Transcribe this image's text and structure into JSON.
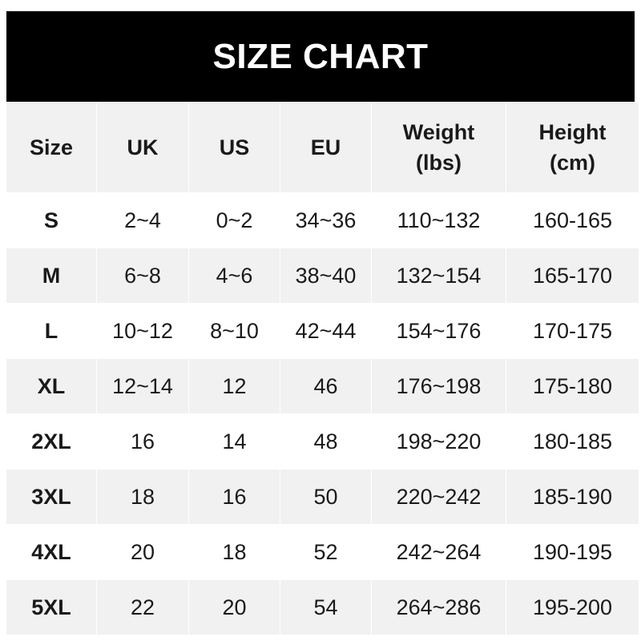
{
  "title": "SIZE CHART",
  "headers": [
    "Size",
    "UK",
    "US",
    "EU",
    "Weight\n(lbs)",
    "Height\n(cm)"
  ],
  "rows": [
    [
      "S",
      "2~4",
      "0~2",
      "34~36",
      "110~132",
      "160-165"
    ],
    [
      "M",
      "6~8",
      "4~6",
      "38~40",
      "132~154",
      "165-170"
    ],
    [
      "L",
      "10~12",
      "8~10",
      "42~44",
      "154~176",
      "170-175"
    ],
    [
      "XL",
      "12~14",
      "12",
      "46",
      "176~198",
      "175-180"
    ],
    [
      "2XL",
      "16",
      "14",
      "48",
      "198~220",
      "180-185"
    ],
    [
      "3XL",
      "18",
      "16",
      "50",
      "220~242",
      "185-190"
    ],
    [
      "4XL",
      "20",
      "18",
      "52",
      "242~264",
      "190-195"
    ],
    [
      "5XL",
      "22",
      "20",
      "54",
      "264~286",
      "195-200"
    ]
  ]
}
